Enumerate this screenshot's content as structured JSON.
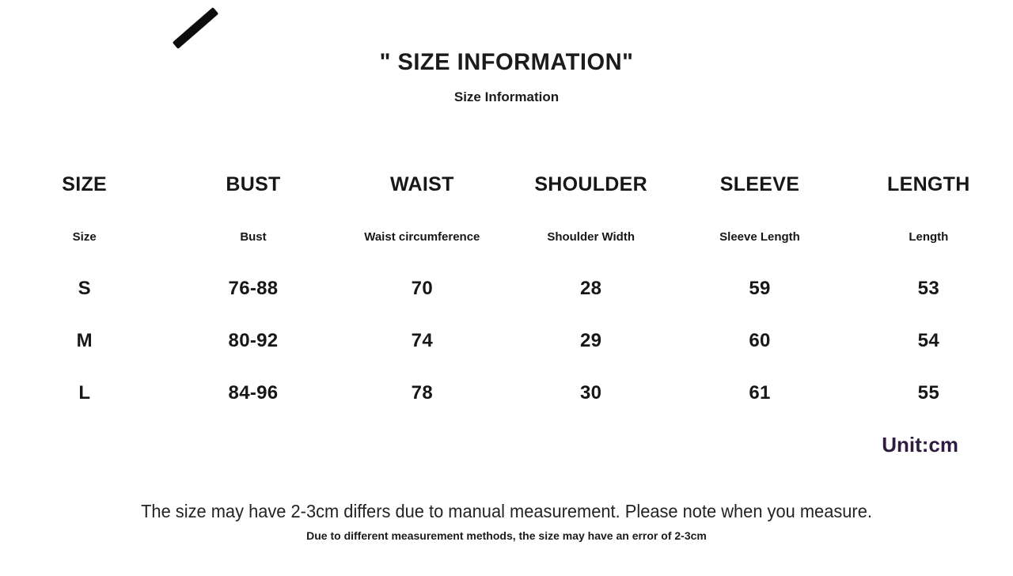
{
  "header": {
    "title": "\" SIZE INFORMATION\"",
    "subtitle": "Size Information"
  },
  "table": {
    "columns": [
      {
        "header": "SIZE",
        "subheader": "Size"
      },
      {
        "header": "BUST",
        "subheader": "Bust"
      },
      {
        "header": "WAIST",
        "subheader": "Waist circumference"
      },
      {
        "header": "SHOULDER",
        "subheader": "Shoulder Width"
      },
      {
        "header": "SLEEVE",
        "subheader": "Sleeve Length"
      },
      {
        "header": "LENGTH",
        "subheader": "Length"
      }
    ],
    "rows": [
      {
        "size": "S",
        "bust": "76-88",
        "waist": "70",
        "shoulder": "28",
        "sleeve": "59",
        "length": "53"
      },
      {
        "size": "M",
        "bust": "80-92",
        "waist": "74",
        "shoulder": "29",
        "sleeve": "60",
        "length": "54"
      },
      {
        "size": "L",
        "bust": "84-96",
        "waist": "78",
        "shoulder": "30",
        "sleeve": "61",
        "length": "55"
      }
    ],
    "unit_label": "Unit:cm"
  },
  "footer": {
    "note_primary": "The size may have 2-3cm differs due to manual measurement. Please note when you measure.",
    "note_secondary": "Due to different measurement methods, the size may have an error of 2-3cm"
  },
  "colors": {
    "text": "#1b1b1b",
    "unit_label": "#2e1d3f",
    "background": "#ffffff",
    "slash": "#0d0d0d"
  }
}
